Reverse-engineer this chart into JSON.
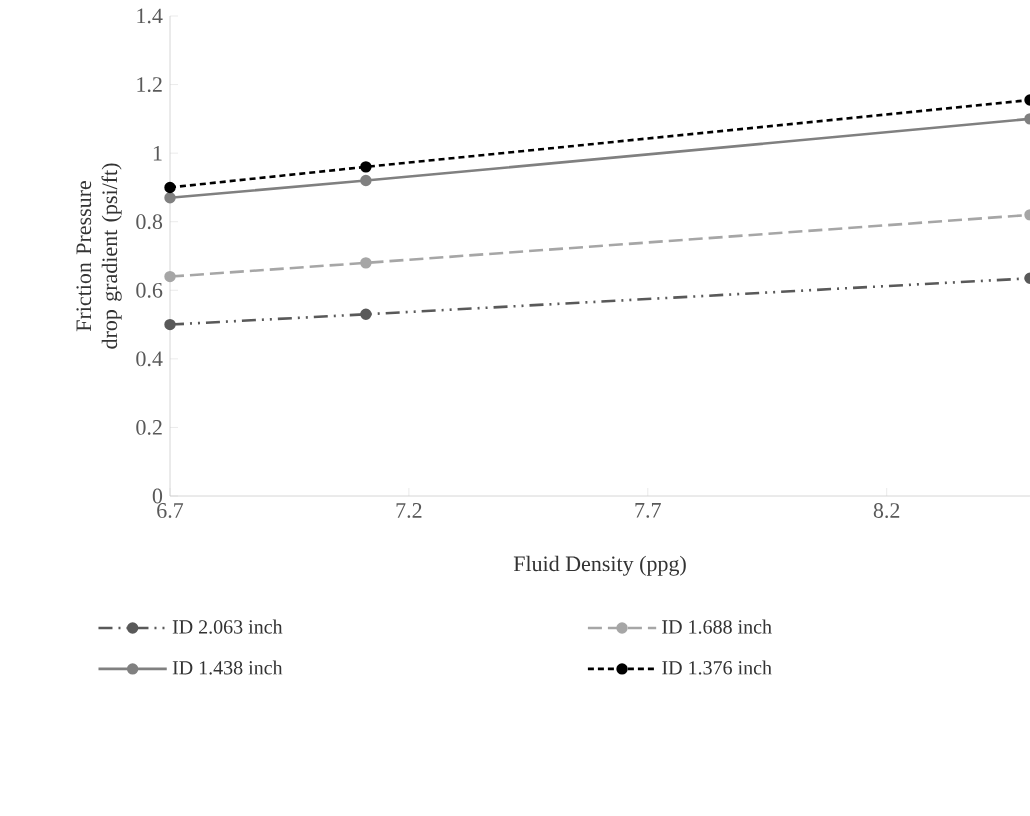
{
  "chart_data": {
    "type": "line",
    "xlabel": "Fluid Density (ppg)",
    "ylabel": "Friction Pressure drop gradient (psi/ft)",
    "xlim": [
      6.7,
      8.5
    ],
    "xticks": [
      6.7,
      7.2,
      7.7,
      8.2
    ],
    "ylim": [
      0,
      1.4
    ],
    "yticks": [
      0,
      0.2,
      0.4,
      0.6,
      0.8,
      1,
      1.2,
      1.4
    ],
    "grid": false,
    "legend": "bottom",
    "marker": "circle",
    "series": [
      {
        "name": "ID 2.063 inch",
        "color": "#595959",
        "line_style": "dashdotdot",
        "x": [
          6.7,
          7.11,
          8.5
        ],
        "values": [
          0.5,
          0.53,
          0.635
        ]
      },
      {
        "name": "ID 1.688 inch",
        "color": "#a6a6a6",
        "line_style": "longdashed",
        "x": [
          6.7,
          7.11,
          8.5
        ],
        "values": [
          0.64,
          0.68,
          0.82
        ]
      },
      {
        "name": "ID 1.438 inch",
        "color": "#808080",
        "line_style": "solid",
        "x": [
          6.7,
          7.11,
          8.5
        ],
        "values": [
          0.87,
          0.92,
          1.1
        ]
      },
      {
        "name": "ID 1.376 inch",
        "color": "#000000",
        "line_style": "dashed",
        "x": [
          6.7,
          7.11,
          8.5
        ],
        "values": [
          0.9,
          0.96,
          1.155
        ]
      }
    ]
  }
}
